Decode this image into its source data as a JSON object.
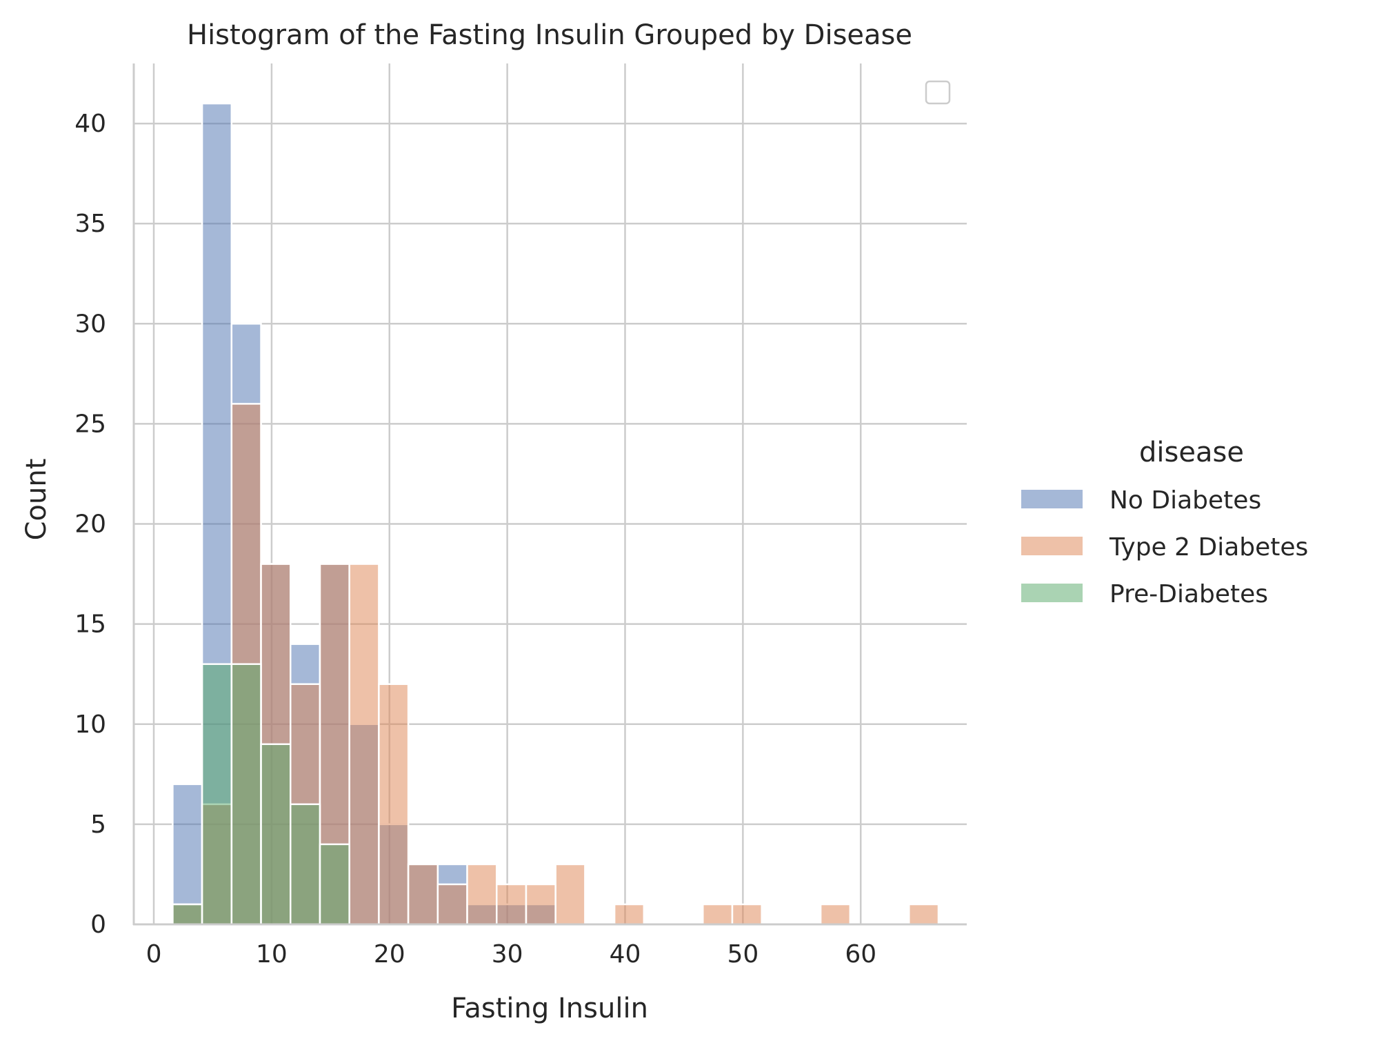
{
  "chart_data": {
    "type": "bar",
    "subtype": "overlaid histogram",
    "title": "Histogram of the Fasting Insulin Grouped by Disease",
    "xlabel": "Fasting Insulin",
    "ylabel": "Count",
    "xlim": [
      -1.7,
      69
    ],
    "ylim": [
      0,
      43
    ],
    "x_ticks": [
      "0",
      "10",
      "20",
      "30",
      "40",
      "50",
      "60"
    ],
    "y_ticks": [
      "0",
      "5",
      "10",
      "15",
      "20",
      "25",
      "30",
      "35",
      "40"
    ],
    "grid": true,
    "bin_edges": [
      1.6,
      4.1,
      6.6,
      9.1,
      11.6,
      14.1,
      16.6,
      19.1,
      21.6,
      24.1,
      26.6,
      29.1,
      31.6,
      34.1,
      36.6,
      39.1,
      41.6,
      44.1,
      46.6,
      49.1,
      51.6,
      54.1,
      56.6,
      59.1,
      61.6,
      64.1,
      66.6
    ],
    "series": [
      {
        "name": "No Diabetes",
        "color": "#4c72b0",
        "values": [
          7,
          41,
          30,
          18,
          14,
          18,
          10,
          5,
          3,
          3,
          1,
          1,
          1,
          0,
          0,
          0,
          0,
          0,
          0,
          0,
          0,
          0,
          0,
          0,
          0,
          0
        ]
      },
      {
        "name": "Type 2 Diabetes",
        "color": "#dd8452",
        "values": [
          1,
          6,
          26,
          18,
          12,
          18,
          18,
          12,
          3,
          2,
          3,
          2,
          2,
          3,
          0,
          1,
          0,
          0,
          1,
          1,
          0,
          0,
          1,
          0,
          0,
          1
        ]
      },
      {
        "name": "Pre-Diabetes",
        "color": "#55a868",
        "values": [
          1,
          13,
          13,
          9,
          6,
          4,
          0,
          0,
          0,
          0,
          0,
          0,
          0,
          0,
          0,
          0,
          0,
          0,
          0,
          0,
          0,
          0,
          0,
          0,
          0,
          0
        ]
      }
    ],
    "legend": {
      "title": "disease",
      "placement": "outside-right",
      "entries": [
        "No Diabetes",
        "Type 2 Diabetes",
        "Pre-Diabetes"
      ],
      "empty_inner_legend": "top-right"
    }
  }
}
